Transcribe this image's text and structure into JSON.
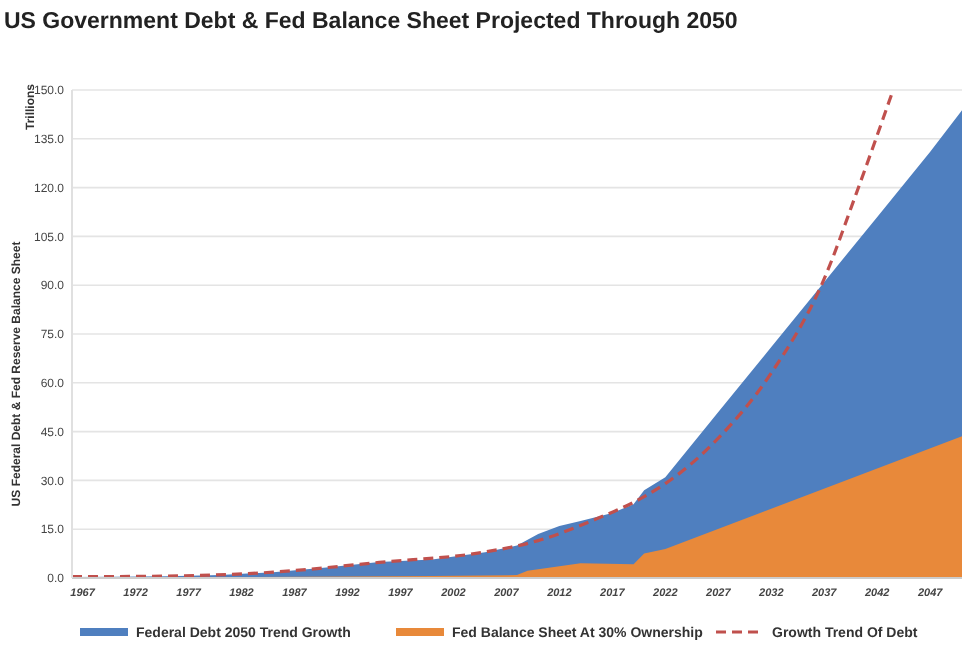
{
  "chart_data": {
    "type": "area",
    "title": "US Government Debt & Fed Balance Sheet Projected Through 2050",
    "ylabel": "US Federal Debt & Fed Reserve Balance Sheet",
    "annotations": [
      "Trillions"
    ],
    "xlim": [
      1966,
      2050
    ],
    "xticks": [
      1967,
      1972,
      1977,
      1982,
      1987,
      1992,
      1997,
      2002,
      2007,
      2012,
      2017,
      2022,
      2027,
      2032,
      2037,
      2042,
      2047
    ],
    "ylim": [
      0,
      150
    ],
    "yticks": [
      {
        "value": 0,
        "label": "0.0"
      },
      {
        "value": 15,
        "label": "15.0"
      },
      {
        "value": 30,
        "label": "30.0"
      },
      {
        "value": 45,
        "label": "45.0"
      },
      {
        "value": 60,
        "label": "60.0"
      },
      {
        "value": 75,
        "label": "75.0"
      },
      {
        "value": 90,
        "label": "90.0"
      },
      {
        "value": 105,
        "label": "105.0"
      },
      {
        "value": 120,
        "label": "120.0"
      },
      {
        "value": 135,
        "label": "135.0"
      },
      {
        "value": 150,
        "label": "150.0"
      }
    ],
    "grid": "y",
    "legend": "bottom",
    "series": [
      {
        "name": "Federal Debt 2050 Trend Growth",
        "color": "#4f7fbf",
        "x": [
          1966,
          1970,
          1975,
          1980,
          1985,
          1990,
          1995,
          2000,
          2005,
          2008,
          2010,
          2012,
          2014,
          2017,
          2019,
          2020,
          2022,
          2027,
          2032,
          2037,
          2042,
          2047,
          2050
        ],
        "values": [
          0.3,
          0.4,
          0.5,
          0.9,
          1.8,
          3.2,
          4.9,
          5.7,
          7.9,
          10,
          13.5,
          16,
          17.5,
          20,
          22.7,
          27,
          31,
          51,
          71,
          91,
          111,
          131,
          143.8
        ]
      },
      {
        "name": "Fed Balance Sheet At 30% Ownership",
        "color": "#e8893a",
        "x": [
          1966,
          2000,
          2008,
          2009,
          2014,
          2019,
          2020,
          2022,
          2050
        ],
        "values": [
          0,
          0.6,
          0.9,
          2.2,
          4.5,
          4.2,
          7.5,
          8.9,
          43.6
        ]
      },
      {
        "name": "Growth Trend Of Debt",
        "type": "line",
        "line_style": "dashed",
        "color": "#c0504d",
        "x": [
          1966,
          1975,
          1985,
          1995,
          2005,
          2010,
          2015,
          2020,
          2022,
          2027,
          2032,
          2037,
          2040,
          2043.5
        ],
        "values": [
          0.4,
          0.6,
          1.8,
          4.8,
          8,
          11.5,
          17.5,
          25,
          29,
          43,
          63,
          92,
          118,
          150
        ]
      }
    ]
  }
}
